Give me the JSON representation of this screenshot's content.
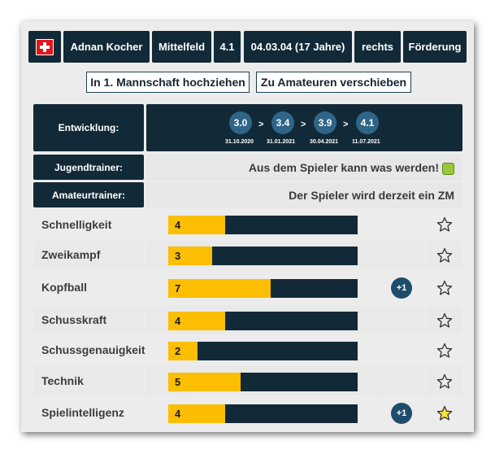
{
  "header": {
    "flag_icon": "swiss-flag-icon",
    "name": "Adnan Kocher",
    "position": "Mittelfeld",
    "strength": "4.1",
    "birth": "04.03.04 (17 Jahre)",
    "foot": "rechts",
    "status": "Förderung"
  },
  "actions": {
    "promote": "In 1. Mannschaft hochziehen",
    "move": "Zu Amateuren verschieben"
  },
  "development": {
    "label": "Entwicklung:",
    "steps": [
      {
        "value": "3.0",
        "date": "31.10.2020"
      },
      {
        "value": "3.4",
        "date": "31.01.2021"
      },
      {
        "value": "3.9",
        "date": "30.04.2021"
      },
      {
        "value": "4.1",
        "date": "11.07.2021"
      }
    ],
    "arrow": ">"
  },
  "youth_trainer": {
    "label": "Jugendtrainer:",
    "text": "Aus dem Spieler kann was werden!",
    "icon": "thumbs-up-icon"
  },
  "amateur_trainer": {
    "label": "Amateurtrainer:",
    "text": "Der Spieler wird derzeit ein ZM"
  },
  "skills": [
    {
      "name": "Schnelligkeit",
      "value": "4",
      "level": 0.3,
      "bonus": "",
      "starred": false
    },
    {
      "name": "Zweikampf",
      "value": "3",
      "level": 0.23,
      "bonus": "",
      "starred": false
    },
    {
      "name": "Kopfball",
      "value": "7",
      "level": 0.54,
      "bonus": "+1",
      "starred": false
    },
    {
      "name": "Schusskraft",
      "value": "4",
      "level": 0.3,
      "bonus": "",
      "starred": false
    },
    {
      "name": "Schussgenauigkeit",
      "value": "2",
      "level": 0.155,
      "bonus": "",
      "starred": false
    },
    {
      "name": "Technik",
      "value": "5",
      "level": 0.38,
      "bonus": "",
      "starred": false
    },
    {
      "name": "Spielintelligenz",
      "value": "4",
      "level": 0.3,
      "bonus": "+1",
      "starred": true
    }
  ],
  "colors": {
    "bar_fill": "#fbbe00",
    "bar_bg": "#122a38",
    "star_active": "#f6e23a"
  }
}
